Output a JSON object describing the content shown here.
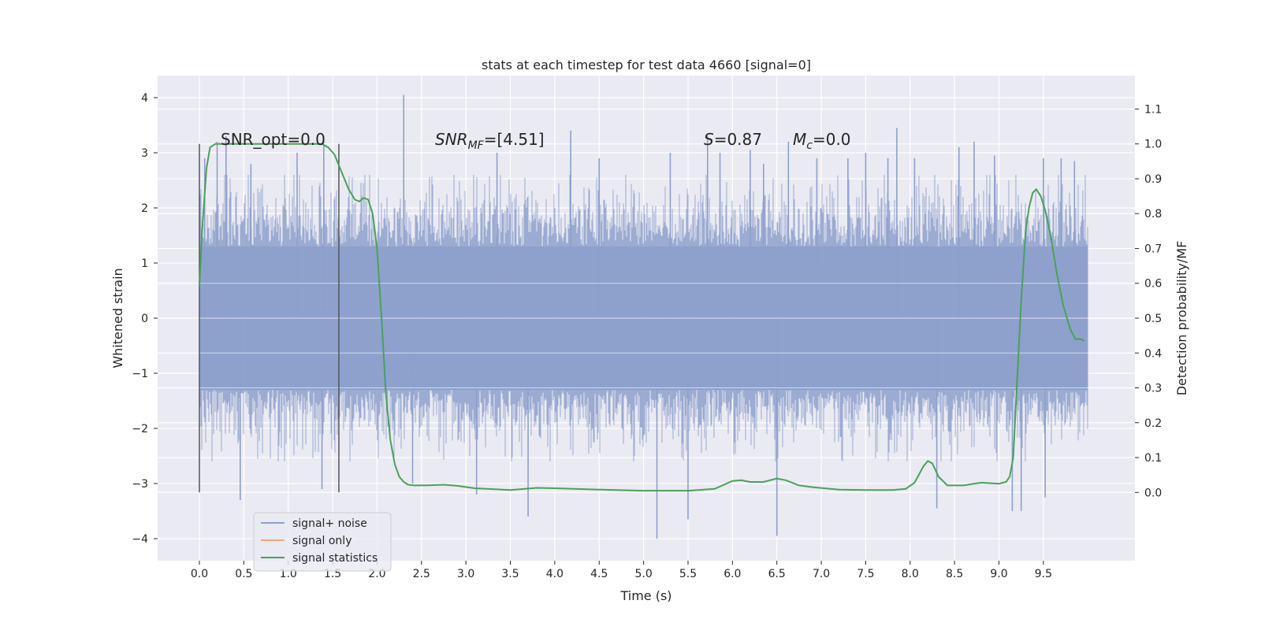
{
  "chart_data": {
    "type": "line",
    "title": "stats at each timestep for test data 4660 [signal=0]",
    "xlabel": "Time (s)",
    "ylabel": "Whitened strain",
    "y2label": "Detection probability/MF",
    "xlim": [
      -0.47,
      10.53
    ],
    "ylim": [
      -4.4,
      4.4
    ],
    "y2lim": [
      -0.196,
      1.196
    ],
    "x_ticks": [
      0.0,
      0.5,
      1.0,
      1.5,
      2.0,
      2.5,
      3.0,
      3.5,
      4.0,
      4.5,
      5.0,
      5.5,
      6.0,
      6.5,
      7.0,
      7.5,
      8.0,
      8.5,
      9.0,
      9.5
    ],
    "x_tick_labels": [
      "0.0",
      "0.5",
      "1.0",
      "1.5",
      "2.0",
      "2.5",
      "3.0",
      "3.5",
      "4.0",
      "4.5",
      "5.0",
      "5.5",
      "6.0",
      "6.5",
      "7.0",
      "7.5",
      "8.0",
      "8.5",
      "9.0",
      "9.5"
    ],
    "y_ticks": [
      4,
      3,
      2,
      1,
      0,
      -1,
      -2,
      -3,
      -4
    ],
    "y_tick_labels": [
      "4",
      "3",
      "2",
      "1",
      "0",
      "−1",
      "−2",
      "−3",
      "−4"
    ],
    "y2_ticks": [
      1.1,
      1.0,
      0.9,
      0.8,
      0.7,
      0.6,
      0.5,
      0.4,
      0.3,
      0.2,
      0.1,
      0.0
    ],
    "y2_tick_labels": [
      "1.1",
      "1.0",
      "0.9",
      "0.8",
      "0.7",
      "0.6",
      "0.5",
      "0.4",
      "0.3",
      "0.2",
      "0.1",
      "0.0"
    ],
    "grid": true,
    "legend_position": "bottom-left",
    "legend": [
      {
        "label": "signal+ noise",
        "color": "#8da0cb"
      },
      {
        "label": "signal only",
        "color": "#f0a57f"
      },
      {
        "label": "signal statistics",
        "color": "#4aa15a"
      }
    ],
    "annotations": {
      "snr_opt": "SNR_opt=0.0",
      "snr_mf_base": "SNR",
      "snr_mf_sub": "MF",
      "snr_mf_value": "=[4.51]",
      "s_sym": "S",
      "s_value": "=0.87",
      "mc_sym": "M",
      "mc_sub": "c",
      "mc_value": "=0.0"
    },
    "vertical_markers": [
      0.0,
      1.57
    ],
    "series": [
      {
        "name": "signal+ noise",
        "axis": "left",
        "noise_extent": {
          "x_start": 0.0,
          "x_end": 10.0,
          "band_low": -1.3,
          "band_high": 1.3
        },
        "spikes": [
          [
            0.06,
            2.9
          ],
          [
            0.2,
            3.2
          ],
          [
            0.3,
            3.3
          ],
          [
            0.46,
            -3.3
          ],
          [
            0.58,
            2.8
          ],
          [
            1.1,
            3.0
          ],
          [
            1.38,
            -3.1
          ],
          [
            1.4,
            3.3
          ],
          [
            2.3,
            4.05
          ],
          [
            2.4,
            -3.0
          ],
          [
            3.12,
            -3.2
          ],
          [
            3.35,
            3.0
          ],
          [
            3.7,
            -3.6
          ],
          [
            4.18,
            3.4
          ],
          [
            4.5,
            2.9
          ],
          [
            5.15,
            -4.0
          ],
          [
            5.3,
            3.0
          ],
          [
            5.5,
            -3.65
          ],
          [
            5.72,
            3.3
          ],
          [
            5.86,
            3.0
          ],
          [
            6.2,
            3.05
          ],
          [
            6.35,
            2.8
          ],
          [
            6.5,
            -3.95
          ],
          [
            6.63,
            3.2
          ],
          [
            6.95,
            2.9
          ],
          [
            7.3,
            2.9
          ],
          [
            7.5,
            3.0
          ],
          [
            7.75,
            2.9
          ],
          [
            7.85,
            3.45
          ],
          [
            8.05,
            2.9
          ],
          [
            8.3,
            -3.45
          ],
          [
            8.55,
            3.1
          ],
          [
            8.72,
            3.2
          ],
          [
            8.95,
            2.95
          ],
          [
            9.15,
            -3.5
          ],
          [
            9.25,
            -3.5
          ],
          [
            9.5,
            2.9
          ],
          [
            9.52,
            -3.25
          ],
          [
            9.7,
            2.9
          ],
          [
            9.85,
            2.85
          ]
        ]
      },
      {
        "name": "signal only",
        "axis": "left",
        "x": [],
        "y": []
      },
      {
        "name": "signal statistics",
        "axis": "right",
        "x": [
          0.0,
          0.03,
          0.08,
          0.12,
          0.18,
          0.3,
          0.6,
          1.0,
          1.25,
          1.38,
          1.45,
          1.52,
          1.6,
          1.68,
          1.75,
          1.8,
          1.85,
          1.9,
          1.95,
          2.0,
          2.05,
          2.1,
          2.15,
          2.2,
          2.25,
          2.3,
          2.35,
          2.42,
          2.55,
          2.75,
          2.9,
          3.1,
          3.5,
          3.8,
          4.0,
          4.5,
          5.0,
          5.5,
          5.8,
          6.0,
          6.1,
          6.2,
          6.35,
          6.5,
          6.6,
          6.75,
          6.9,
          7.2,
          7.5,
          7.8,
          7.95,
          8.05,
          8.15,
          8.2,
          8.25,
          8.32,
          8.42,
          8.6,
          8.8,
          9.0,
          9.08,
          9.12,
          9.16,
          9.2,
          9.25,
          9.3,
          9.34,
          9.38,
          9.42,
          9.47,
          9.52,
          9.58,
          9.65,
          9.72,
          9.8,
          9.86,
          9.92,
          9.96
        ],
        "y": [
          0.59,
          0.75,
          0.93,
          0.99,
          1.0,
          1.0,
          1.0,
          1.0,
          1.0,
          1.0,
          0.99,
          0.97,
          0.92,
          0.87,
          0.84,
          0.835,
          0.845,
          0.84,
          0.8,
          0.7,
          0.5,
          0.28,
          0.15,
          0.08,
          0.045,
          0.03,
          0.022,
          0.02,
          0.02,
          0.022,
          0.019,
          0.012,
          0.007,
          0.013,
          0.012,
          0.008,
          0.005,
          0.005,
          0.01,
          0.033,
          0.035,
          0.03,
          0.03,
          0.04,
          0.035,
          0.02,
          0.015,
          0.008,
          0.007,
          0.007,
          0.01,
          0.028,
          0.075,
          0.09,
          0.083,
          0.045,
          0.02,
          0.02,
          0.028,
          0.025,
          0.03,
          0.045,
          0.1,
          0.3,
          0.55,
          0.75,
          0.82,
          0.86,
          0.87,
          0.85,
          0.81,
          0.74,
          0.63,
          0.54,
          0.47,
          0.44,
          0.44,
          0.435
        ]
      }
    ]
  }
}
